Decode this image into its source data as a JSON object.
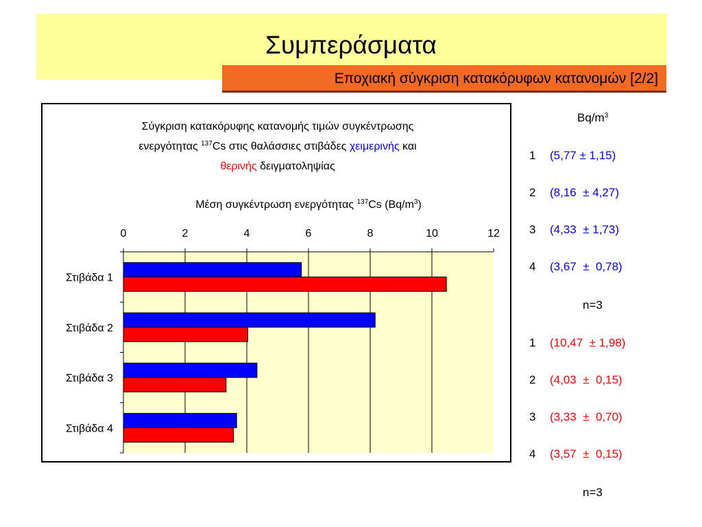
{
  "slide": {
    "title": "Συμπεράσματα",
    "subtitle": "Εποχιακή σύγκριση κατακόρυφων κατανομών [2/2]"
  },
  "colors": {
    "title_band": "#ffff99",
    "subtitle_bg": "#f26a21",
    "plot_bg": "#ffffcc",
    "winter": "#0000ff",
    "summer": "#ff0000"
  },
  "chart_data": {
    "type": "bar",
    "orientation": "horizontal",
    "title_parts": {
      "line1": "Σύγκριση κατακόρυφης κατανομής τιμών συγκέντρωσης",
      "line2_a": "ενεργότητας ",
      "line2_sup": "137",
      "line2_b": "Cs στις θαλάσσιες στιβάδες ",
      "line2_winter": "χειμερινής",
      "line2_c": " και",
      "line3_summer": "θερινής",
      "line3_b": " δειγματοληψίας"
    },
    "xlabel_parts": {
      "a": "Μέση συγκέντρωση ενεργότητας ",
      "sup": "137",
      "b": "Cs (Bq/m",
      "sup2": "3",
      "c": ")"
    },
    "categories": [
      "Στιβάδα 1",
      "Στιβάδα 2",
      "Στιβάδα 3",
      "Στιβάδα 4"
    ],
    "series": [
      {
        "values": [
          5.77,
          8.16,
          4.33,
          3.67
        ],
        "color": "#0000ff"
      },
      {
        "values": [
          10.47,
          4.03,
          3.33,
          3.57
        ],
        "color": "#ff0000"
      }
    ],
    "xlim": [
      0,
      12
    ],
    "xticks": [
      "0",
      "2",
      "4",
      "6",
      "8",
      "10",
      "12"
    ],
    "axis_position": "top",
    "grid": "vertical"
  },
  "results": {
    "unit_a": "Bq/m",
    "unit_sup": "3",
    "winter": [
      {
        "n": "1",
        "v": "(5,77 ± 1,15)"
      },
      {
        "n": "2",
        "v": "(8,16  ± 4,27)"
      },
      {
        "n": "3",
        "v": "(4,33  ± 1,73)"
      },
      {
        "n": "4",
        "v": "(3,67  ±  0,78)"
      }
    ],
    "winter_n": "n=3",
    "summer": [
      {
        "n": "1",
        "v": "(10,47  ± 1,98)"
      },
      {
        "n": "2",
        "v": "(4,03  ±  0,15)"
      },
      {
        "n": "3",
        "v": "(3,33  ±  0,70)"
      },
      {
        "n": "4",
        "v": "(3,57  ±  0,15)"
      }
    ],
    "summer_n": "n=3"
  }
}
